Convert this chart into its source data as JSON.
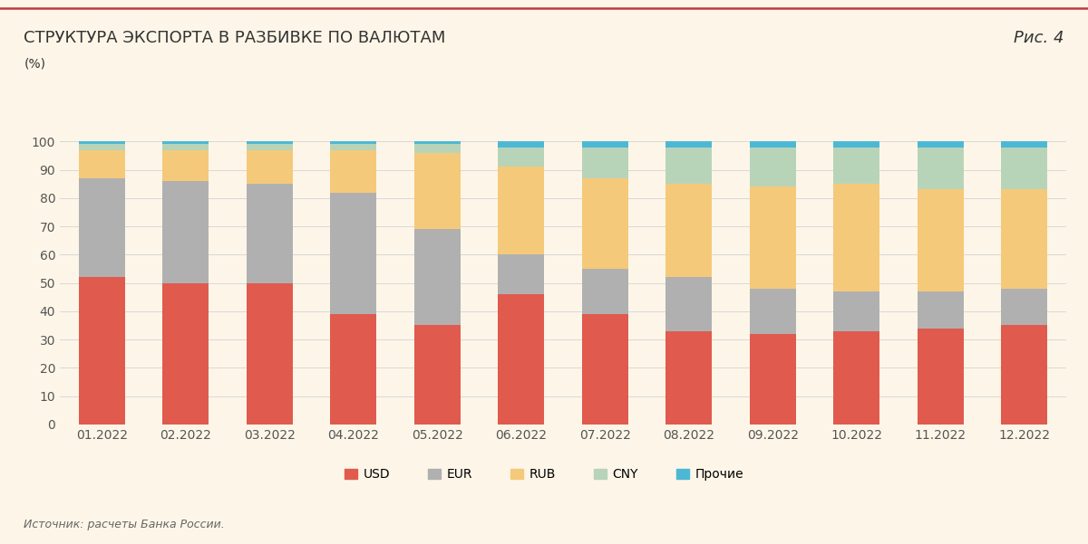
{
  "title": "СТРУКТУРА ЭКСПОРТА В РАЗБИВКЕ ПО ВАЛЮТАМ",
  "subtitle": "(%)",
  "fig_label": "Рис. 4",
  "source": "Источник: расчеты Банка России.",
  "categories": [
    "01.2022",
    "02.2022",
    "03.2022",
    "04.2022",
    "05.2022",
    "06.2022",
    "07.2022",
    "08.2022",
    "09.2022",
    "10.2022",
    "11.2022",
    "12.2022"
  ],
  "USD": [
    52,
    50,
    50,
    39,
    35,
    46,
    39,
    33,
    32,
    33,
    34,
    35
  ],
  "EUR": [
    35,
    36,
    35,
    43,
    34,
    14,
    16,
    19,
    16,
    14,
    13,
    13
  ],
  "RUB": [
    10,
    11,
    12,
    15,
    27,
    31,
    32,
    33,
    36,
    38,
    36,
    35
  ],
  "CNY": [
    2,
    2,
    2,
    2,
    3,
    7,
    11,
    13,
    14,
    13,
    15,
    15
  ],
  "Прочие": [
    1,
    1,
    1,
    1,
    1,
    2,
    2,
    2,
    2,
    2,
    2,
    2
  ],
  "colors": {
    "USD": "#e05a4e",
    "EUR": "#b0b0b0",
    "RUB": "#f5c97a",
    "CNY": "#b8d4b8",
    "Прочие": "#4db8d4"
  },
  "background_color": "#fdf6e8",
  "title_color": "#333333",
  "ylim": [
    0,
    100
  ],
  "yticks": [
    0,
    10,
    20,
    30,
    40,
    50,
    60,
    70,
    80,
    90,
    100
  ],
  "title_fontsize": 13,
  "label_fontsize": 10,
  "legend_fontsize": 10,
  "source_fontsize": 9,
  "bar_width": 0.55,
  "top_line_color": "#c0393b",
  "grid_color": "#d8d8d8"
}
